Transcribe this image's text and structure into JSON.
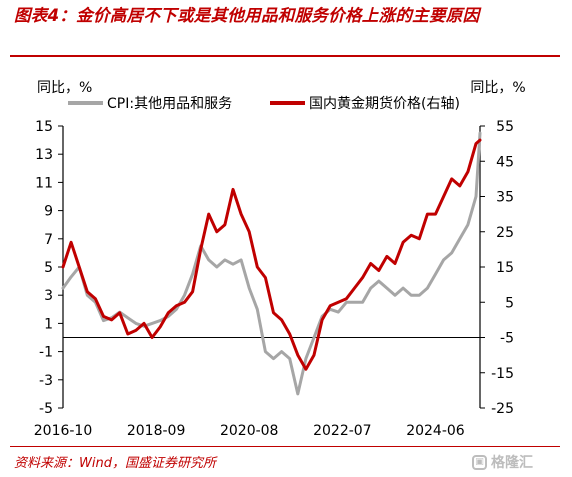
{
  "header": {
    "title": "图表4：金价高居不下或是其他用品和服务价格上涨的主要原因"
  },
  "footer": {
    "source": "资料来源：Wind，国盛证券研究所",
    "watermark": "格隆汇"
  },
  "colors": {
    "title_red": "#c00000",
    "cpi_series": "#a6a6a6",
    "gold_series": "#c00000"
  },
  "chart_data": {
    "type": "line",
    "ylabel_left": "同比，%",
    "ylabel_right": "同比，%",
    "x_tick_labels": [
      "2016-10",
      "2018-09",
      "2020-08",
      "2022-07",
      "2024-06"
    ],
    "x_range": [
      "2016-10",
      "2025-05"
    ],
    "ylim_left": [
      -5,
      15
    ],
    "yticks_left": [
      -5,
      -3,
      -1,
      1,
      3,
      5,
      7,
      9,
      11,
      13,
      15
    ],
    "ylim_right": [
      -25,
      55
    ],
    "yticks_right": [
      -25,
      -15,
      -5,
      5,
      15,
      25,
      35,
      45,
      55
    ],
    "legend_position": "top",
    "series": [
      {
        "name": "CPI:其他用品和服务",
        "axis": "left",
        "color": "#a6a6a6",
        "x": [
          "2016-10",
          "2016-12",
          "2017-02",
          "2017-04",
          "2017-06",
          "2017-08",
          "2017-10",
          "2017-12",
          "2018-02",
          "2018-04",
          "2018-06",
          "2018-08",
          "2018-10",
          "2018-12",
          "2019-02",
          "2019-04",
          "2019-06",
          "2019-08",
          "2019-10",
          "2019-12",
          "2020-02",
          "2020-04",
          "2020-06",
          "2020-08",
          "2020-10",
          "2020-12",
          "2021-02",
          "2021-04",
          "2021-06",
          "2021-08",
          "2021-10",
          "2021-12",
          "2022-02",
          "2022-04",
          "2022-06",
          "2022-08",
          "2022-10",
          "2022-12",
          "2023-02",
          "2023-04",
          "2023-06",
          "2023-08",
          "2023-10",
          "2023-12",
          "2024-02",
          "2024-04",
          "2024-06",
          "2024-08",
          "2024-10",
          "2024-12",
          "2025-02",
          "2025-04",
          "2025-05"
        ],
        "y": [
          3.5,
          4.3,
          5.0,
          3.0,
          2.5,
          1.2,
          1.4,
          1.8,
          1.4,
          1.0,
          0.8,
          1.0,
          1.2,
          1.5,
          2.0,
          3.0,
          4.5,
          6.5,
          5.5,
          5.0,
          5.5,
          5.2,
          5.5,
          3.5,
          2.0,
          -1.0,
          -1.5,
          -1.0,
          -1.5,
          -4.0,
          -1.5,
          0.0,
          1.5,
          2.0,
          1.8,
          2.5,
          2.5,
          2.5,
          3.5,
          4.0,
          3.5,
          3.0,
          3.5,
          3.0,
          3.0,
          3.5,
          4.5,
          5.5,
          6.0,
          7.0,
          8.0,
          10.0,
          14.5
        ]
      },
      {
        "name": "国内黄金期货价格(右轴)",
        "axis": "right",
        "color": "#c00000",
        "x": [
          "2016-10",
          "2016-12",
          "2017-02",
          "2017-04",
          "2017-06",
          "2017-08",
          "2017-10",
          "2017-12",
          "2018-02",
          "2018-04",
          "2018-06",
          "2018-08",
          "2018-10",
          "2018-12",
          "2019-02",
          "2019-04",
          "2019-06",
          "2019-08",
          "2019-10",
          "2019-12",
          "2020-02",
          "2020-04",
          "2020-06",
          "2020-08",
          "2020-10",
          "2020-12",
          "2021-02",
          "2021-04",
          "2021-06",
          "2021-08",
          "2021-10",
          "2021-12",
          "2022-02",
          "2022-04",
          "2022-06",
          "2022-08",
          "2022-10",
          "2022-12",
          "2023-02",
          "2023-04",
          "2023-06",
          "2023-08",
          "2023-10",
          "2023-12",
          "2024-02",
          "2024-04",
          "2024-06",
          "2024-08",
          "2024-10",
          "2024-12",
          "2025-02",
          "2025-04",
          "2025-05"
        ],
        "y": [
          15,
          22,
          15,
          8,
          6,
          1,
          0,
          2,
          -4,
          -3,
          -1,
          -5,
          -2,
          2,
          4,
          5,
          8,
          20,
          30,
          25,
          27,
          37,
          30,
          25,
          15,
          12,
          2,
          0,
          -4,
          -10,
          -14,
          -10,
          0,
          4,
          5,
          6,
          9,
          12,
          16,
          14,
          18,
          16,
          22,
          24,
          23,
          30,
          30,
          35,
          40,
          38,
          42,
          50,
          51
        ]
      }
    ]
  }
}
